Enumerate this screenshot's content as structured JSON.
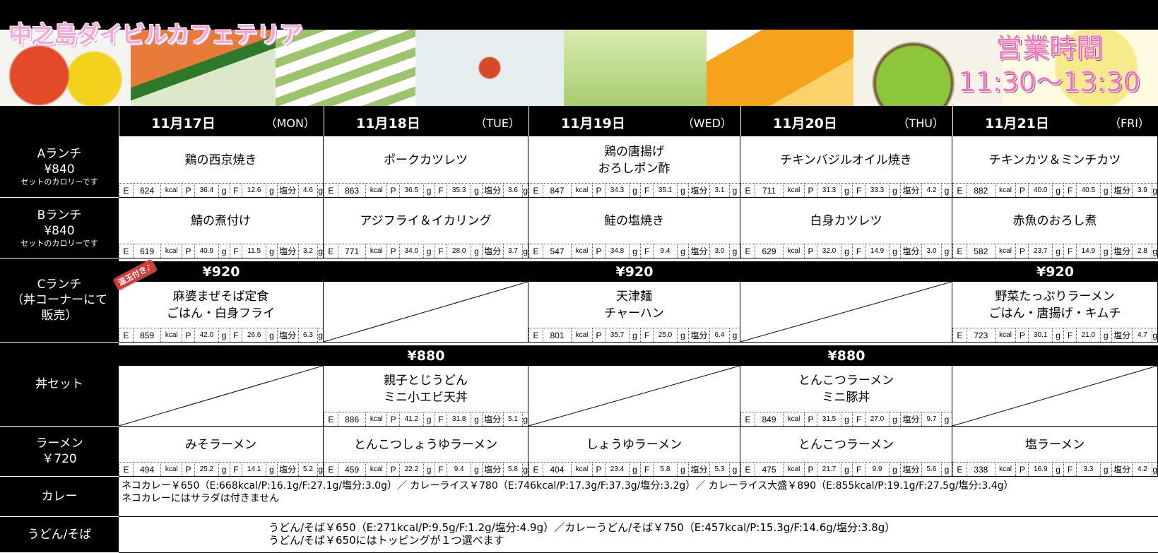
{
  "header": {
    "title": "中之島ダイビルカフェテリア",
    "hours_label": "営業時間",
    "hours": "11:30～13:30"
  },
  "nutrition_labels": {
    "e": "E",
    "kcal": "kcal",
    "p": "P",
    "f": "F",
    "salt": "塩分",
    "g": "g"
  },
  "rows": {
    "a": {
      "label": "Aランチ",
      "price": "¥840",
      "note": "セットのカロリーです"
    },
    "b": {
      "label": "Bランチ",
      "price": "¥840",
      "note": "セットのカロリーです"
    },
    "c": {
      "label": "Cランチ",
      "sub": "（丼コーナーにて",
      "sub2": "販売）",
      "price": "¥920",
      "badge": "温玉付き♪"
    },
    "don": {
      "label": "丼セット",
      "price": "¥880"
    },
    "ramen": {
      "label": "ラーメン",
      "price": "￥720"
    },
    "curry": {
      "label": "カレー",
      "line1": "ネコカレー￥650（E:668kcal/P:16.1g/F:27.1g/塩分:3.0g）／ カレーライス￥780（E:746kcal/P:17.3g/F:37.3g/塩分:3.2g）／ カレーライス大盛￥890（E:855kcal/P:19.1g/F:27.5g/塩分:3.4g）",
      "line2": "ネコカレーにはサラダは付きません"
    },
    "udon": {
      "label": "うどん/そば",
      "line1": "うどん/そば￥650（E:271kcal/P:9.5g/F:1.2g/塩分:4.9g）／カレーうどん/そば￥750（E:457kcal/P:15.3g/F:14.6g/塩分:3.8g）",
      "line2": "うどん/そば￥650にはトッピングが１つ選べます"
    }
  },
  "days": [
    {
      "date": "11月17日",
      "dow": "（MON）",
      "a": {
        "name": [
          "鶏の西京焼き"
        ],
        "n": [
          "624",
          "36.4",
          "12.6",
          "4.6"
        ]
      },
      "b": {
        "name": [
          "鯖の煮付け"
        ],
        "n": [
          "619",
          "40.9",
          "11.5",
          "3.2"
        ]
      },
      "c": {
        "name": [
          "麻婆まぜそば定食",
          "ごはん・白身フライ"
        ],
        "n": [
          "859",
          "42.0",
          "26.6",
          "6.3"
        ]
      },
      "don": null,
      "ramen": {
        "name": [
          "みそラーメン"
        ],
        "n": [
          "494",
          "25.2",
          "14.1",
          "5.2"
        ]
      }
    },
    {
      "date": "11月18日",
      "dow": "（TUE）",
      "a": {
        "name": [
          "ポークカツレツ"
        ],
        "n": [
          "863",
          "36.5",
          "35.3",
          "3.6"
        ]
      },
      "b": {
        "name": [
          "アジフライ＆イカリング"
        ],
        "n": [
          "771",
          "34.0",
          "28.0",
          "3.7"
        ]
      },
      "c": null,
      "don": {
        "name": [
          "親子とじうどん",
          "ミニ小エビ天丼"
        ],
        "n": [
          "886",
          "41.2",
          "31.8",
          "5.1"
        ]
      },
      "ramen": {
        "name": [
          "とんこつしょうゆラーメン"
        ],
        "n": [
          "459",
          "22.2",
          "9.4",
          "5.8"
        ]
      }
    },
    {
      "date": "11月19日",
      "dow": "（WED）",
      "a": {
        "name": [
          "鶏の唐揚げ",
          "おろしポン酢"
        ],
        "n": [
          "847",
          "34.3",
          "35.1",
          "3.1"
        ]
      },
      "b": {
        "name": [
          "鮭の塩焼き"
        ],
        "n": [
          "547",
          "34.8",
          "9.4",
          "3.0"
        ]
      },
      "c": {
        "name": [
          "天津麺",
          "チャーハン"
        ],
        "n": [
          "801",
          "35.7",
          "25.0",
          "6.4"
        ]
      },
      "don": null,
      "ramen": {
        "name": [
          "しょうゆラーメン"
        ],
        "n": [
          "404",
          "23.4",
          "5.8",
          "5.3"
        ]
      }
    },
    {
      "date": "11月20日",
      "dow": "（THU）",
      "a": {
        "name": [
          "チキンバジルオイル焼き"
        ],
        "n": [
          "711",
          "31.3",
          "33.3",
          "4.2"
        ]
      },
      "b": {
        "name": [
          "白身カツレツ"
        ],
        "n": [
          "629",
          "32.0",
          "14.9",
          "3.0"
        ]
      },
      "c": null,
      "don": {
        "name": [
          "とんこつラーメン",
          "ミニ豚丼"
        ],
        "n": [
          "849",
          "31.5",
          "27.0",
          "9.7"
        ]
      },
      "ramen": {
        "name": [
          "とんこつラーメン"
        ],
        "n": [
          "475",
          "21.7",
          "9.9",
          "5.6"
        ]
      }
    },
    {
      "date": "11月21日",
      "dow": "（FRI）",
      "a": {
        "name": [
          "チキンカツ＆ミンチカツ"
        ],
        "n": [
          "882",
          "40.0",
          "40.5",
          "3.9"
        ]
      },
      "b": {
        "name": [
          "赤魚のおろし煮"
        ],
        "n": [
          "582",
          "23.7",
          "14.9",
          "2.8"
        ]
      },
      "c": {
        "name": [
          "野菜たっぷりラーメン",
          "ごはん・唐揚げ・キムチ"
        ],
        "n": [
          "723",
          "30.1",
          "21.0",
          "4.7"
        ]
      },
      "don": null,
      "ramen": {
        "name": [
          "塩ラーメン"
        ],
        "n": [
          "338",
          "16.9",
          "3.3",
          "4.2"
        ]
      }
    }
  ]
}
